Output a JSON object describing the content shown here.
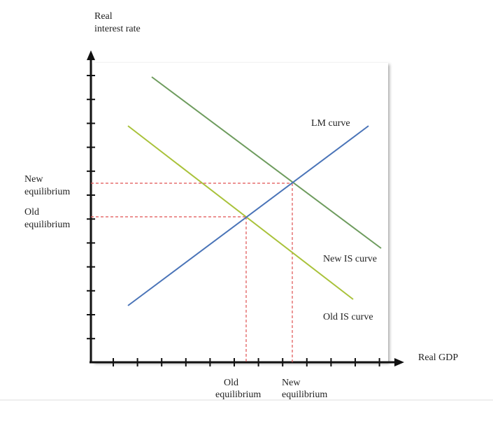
{
  "axes": {
    "y_label": [
      "Real",
      "interest rate"
    ],
    "x_label": "Real GDP"
  },
  "curves": {
    "lm": "LM curve",
    "new_is": "New IS curve",
    "old_is": "Old IS curve"
  },
  "y_markers": {
    "new": [
      "New",
      "equilibrium"
    ],
    "old": [
      "Old",
      "equilibrium"
    ]
  },
  "x_markers": {
    "old": [
      "Old",
      "equilibrium"
    ],
    "new": [
      "New",
      "equilibrium"
    ]
  }
}
